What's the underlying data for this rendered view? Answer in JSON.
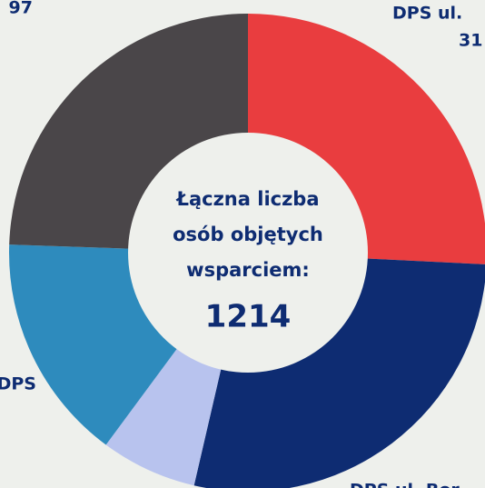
{
  "chart_data": {
    "type": "pie",
    "values": [
      313,
      338,
      79,
      187,
      297
    ],
    "colors": [
      "#e93d3f",
      "#0e2c72",
      "#b8c3ee",
      "#2e8bbd",
      "#4a4649"
    ],
    "center_text": [
      "Łączna liczba",
      "osób objętych",
      "wsparciem:"
    ],
    "center_total": "1214",
    "annotations": [
      "97",
      "DPS ul.",
      "31",
      "DPS",
      "DPS ul. Bor"
    ]
  }
}
